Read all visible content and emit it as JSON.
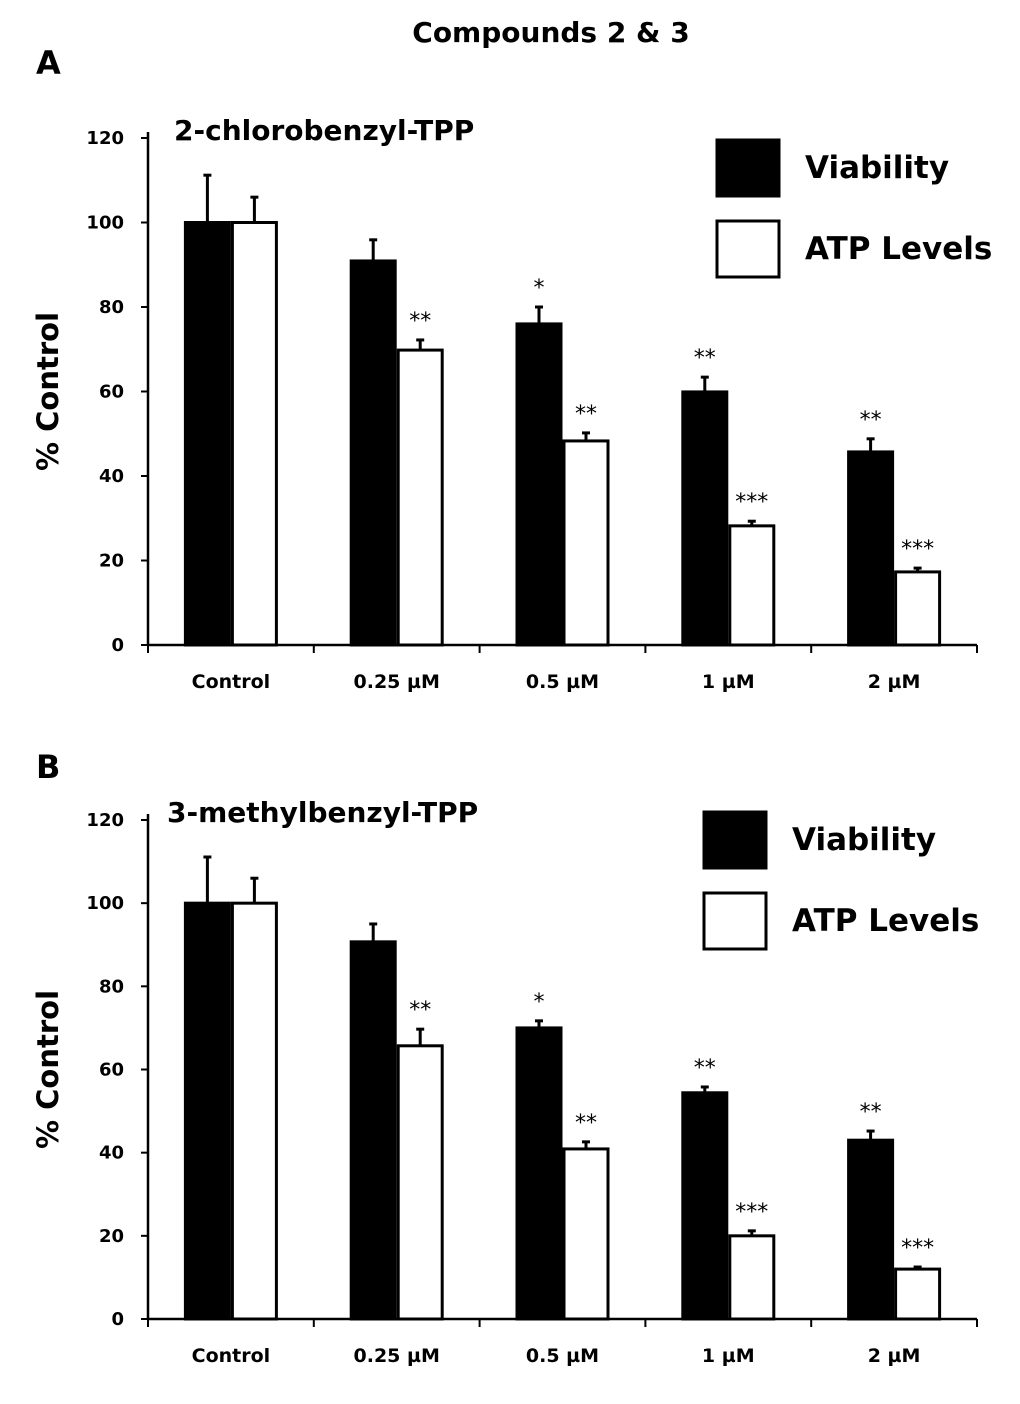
{
  "title": "Compounds 2 & 3",
  "colors": {
    "viability": "#000000",
    "atp": "#ffffff"
  },
  "chart_data": [
    {
      "type": "bar",
      "panel": "A",
      "subtitle": "2-chlorobenzyl-TPP",
      "ylabel": "% Control",
      "ylim": [
        0,
        120
      ],
      "yticks": [
        0,
        20,
        40,
        60,
        80,
        100,
        120
      ],
      "categories": [
        "Control",
        "0.25 µM",
        "0.5 µM",
        "1 µM",
        "2 µM"
      ],
      "legend_position": "top-right",
      "series": [
        {
          "name": "Viability",
          "values": [
            100,
            90.9,
            76,
            59.9,
            45.7
          ],
          "error_upper": [
            111.2,
            95.9,
            80,
            63.4,
            48.8
          ],
          "significance": [
            "",
            "",
            "*",
            "**",
            "**"
          ]
        },
        {
          "name": "ATP Levels",
          "values": [
            100,
            69.8,
            48.3,
            28.2,
            17.3
          ],
          "error_upper": [
            106,
            72.2,
            50.2,
            29.3,
            18.2
          ],
          "significance": [
            "",
            "**",
            "**",
            "***",
            "***"
          ]
        }
      ]
    },
    {
      "type": "bar",
      "panel": "B",
      "subtitle": "3-methylbenzyl-TPP",
      "ylabel": "% Control",
      "ylim": [
        0,
        120
      ],
      "yticks": [
        0,
        20,
        40,
        60,
        80,
        100,
        120
      ],
      "categories": [
        "Control",
        "0.25 µM",
        "0.5 µM",
        "1 µM",
        "2 µM"
      ],
      "legend_position": "top-right",
      "series": [
        {
          "name": "Viability",
          "values": [
            100,
            90.7,
            70,
            54.4,
            43
          ],
          "error_upper": [
            111.1,
            95,
            71.7,
            55.8,
            45.2
          ],
          "significance": [
            "",
            "",
            "*",
            "**",
            "**"
          ]
        },
        {
          "name": "ATP Levels",
          "values": [
            100,
            65.7,
            40.9,
            20,
            12
          ],
          "error_upper": [
            106,
            69.7,
            42.6,
            21.2,
            12.5
          ],
          "significance": [
            "",
            "**",
            "**",
            "***",
            "***"
          ]
        }
      ]
    }
  ]
}
